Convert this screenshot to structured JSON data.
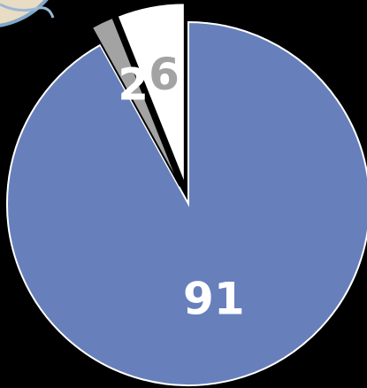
{
  "chart_data": {
    "type": "pie",
    "values": [
      91,
      2,
      6
    ],
    "colors": [
      "#6780bb",
      "#a3a3a3",
      "#ffffff"
    ]
  }
}
